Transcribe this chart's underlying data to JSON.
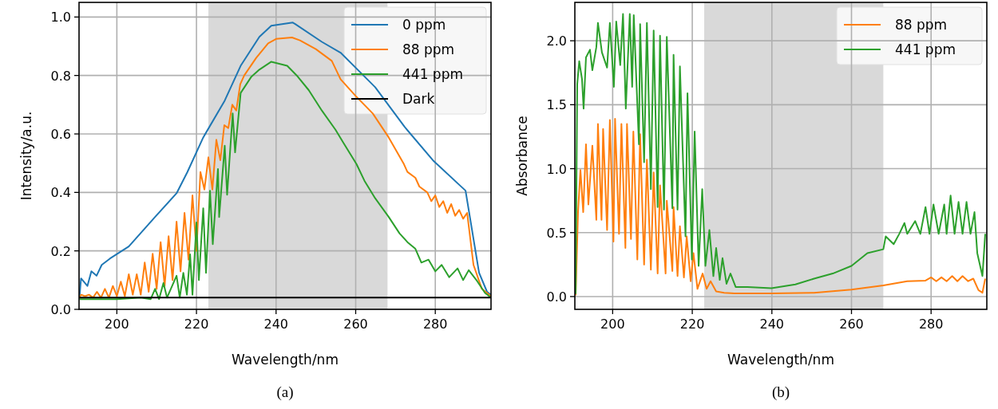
{
  "chart_data": [
    {
      "type": "line",
      "xlabel": "Wavelength/nm",
      "ylabel": "Intensity/a.u.",
      "annotations": [
        "(a)"
      ],
      "xlim": [
        190.5,
        294
      ],
      "ylim": [
        0,
        1.05
      ],
      "xticks": [
        200,
        220,
        240,
        260,
        280
      ],
      "yticks": [
        {
          "value": 0,
          "label": "0.0"
        },
        {
          "value": 0.2,
          "label": "0.2"
        },
        {
          "value": 0.4,
          "label": "0.4"
        },
        {
          "value": 0.6,
          "label": "0.6"
        },
        {
          "value": 0.8,
          "label": "0.8"
        },
        {
          "value": 1,
          "label": "1.0"
        }
      ],
      "grid": true,
      "legend": "top right",
      "bands": [
        {
          "axis": "x",
          "from": 223,
          "to": 268,
          "color": "#d9d9d9"
        }
      ],
      "series": [
        {
          "name": "0 ppm",
          "color": "#1f77b4",
          "x": [
            190.6,
            191.0,
            192.6,
            193.6,
            194.9,
            196.2,
            198.3,
            203.0,
            209.6,
            215.0,
            217.7,
            221.7,
            227.1,
            231.1,
            235.8,
            238.8,
            244.2,
            244.8,
            251.5,
            256.2,
            264.9,
            272.3,
            279.6,
            287.6,
            291.0,
            293.0,
            294.0
          ],
          "values": [
            0.04,
            0.106,
            0.08,
            0.13,
            0.115,
            0.152,
            0.174,
            0.215,
            0.316,
            0.397,
            0.469,
            0.588,
            0.714,
            0.833,
            0.932,
            0.97,
            0.981,
            0.976,
            0.915,
            0.878,
            0.76,
            0.624,
            0.507,
            0.406,
            0.125,
            0.06,
            0.05
          ]
        },
        {
          "name": "88 ppm",
          "color": "#ff7f0e",
          "x": [
            190.6,
            191,
            192,
            193,
            194,
            195,
            196,
            197,
            198,
            199,
            200,
            201,
            202,
            203,
            204,
            205,
            206,
            207,
            208,
            209,
            210,
            211,
            212,
            213,
            214,
            215,
            216,
            217,
            218,
            219,
            220,
            221,
            222,
            223,
            224,
            225,
            226,
            227,
            228,
            229,
            230,
            231,
            232,
            235,
            238,
            240,
            244,
            246,
            250,
            254,
            256.2,
            260,
            264.3,
            268.3,
            272,
            273,
            275,
            276,
            278,
            279,
            280,
            281,
            282,
            283,
            284,
            285,
            286,
            287,
            288,
            289.6,
            291.7,
            294
          ],
          "values": [
            0.04,
            0.05,
            0.045,
            0.05,
            0.04,
            0.06,
            0.04,
            0.07,
            0.04,
            0.08,
            0.045,
            0.095,
            0.045,
            0.12,
            0.05,
            0.12,
            0.05,
            0.16,
            0.06,
            0.19,
            0.07,
            0.23,
            0.08,
            0.25,
            0.1,
            0.3,
            0.13,
            0.33,
            0.17,
            0.39,
            0.2,
            0.47,
            0.41,
            0.52,
            0.41,
            0.58,
            0.51,
            0.63,
            0.62,
            0.7,
            0.68,
            0.77,
            0.8,
            0.86,
            0.91,
            0.925,
            0.93,
            0.92,
            0.89,
            0.85,
            0.787,
            0.73,
            0.67,
            0.588,
            0.5,
            0.47,
            0.45,
            0.42,
            0.4,
            0.37,
            0.39,
            0.35,
            0.37,
            0.33,
            0.36,
            0.32,
            0.34,
            0.31,
            0.33,
            0.152,
            0.07,
            0.045
          ]
        },
        {
          "name": "441 ppm",
          "color": "#2ca02c",
          "x": [
            190.6,
            200,
            206,
            208.5,
            209.6,
            210.6,
            211.7,
            212.6,
            215,
            215.8,
            216.7,
            217.6,
            218.4,
            219,
            220,
            220.6,
            221.7,
            222.4,
            223.4,
            224.1,
            225.4,
            225.7,
            227.1,
            227.7,
            229.1,
            229.7,
            231.1,
            233.8,
            235.8,
            238.8,
            242.8,
            245.4,
            248.2,
            251.5,
            254.9,
            256.9,
            260.2,
            262.2,
            264.9,
            268.3,
            271,
            273,
            275,
            276.5,
            278.3,
            280,
            281.6,
            283.5,
            285.6,
            287,
            288.4,
            290.5,
            292.5,
            294
          ],
          "values": [
            0.035,
            0.035,
            0.04,
            0.035,
            0.07,
            0.035,
            0.09,
            0.04,
            0.115,
            0.04,
            0.125,
            0.05,
            0.188,
            0.05,
            0.297,
            0.1,
            0.346,
            0.125,
            0.406,
            0.223,
            0.48,
            0.316,
            0.56,
            0.392,
            0.67,
            0.537,
            0.74,
            0.796,
            0.82,
            0.847,
            0.833,
            0.797,
            0.75,
            0.68,
            0.615,
            0.57,
            0.497,
            0.44,
            0.38,
            0.316,
            0.26,
            0.23,
            0.207,
            0.16,
            0.17,
            0.13,
            0.152,
            0.11,
            0.14,
            0.1,
            0.134,
            0.097,
            0.056,
            0.04
          ]
        },
        {
          "name": "Dark",
          "color": "#000000",
          "x": [
            190.5,
            294
          ],
          "values": [
            0.04,
            0.04
          ]
        }
      ]
    },
    {
      "type": "line",
      "xlabel": "Wavelength/nm",
      "ylabel": "Absorbance",
      "annotations": [
        "(b)"
      ],
      "xlim": [
        190.5,
        294
      ],
      "ylim": [
        -0.1,
        2.3
      ],
      "xticks": [
        200,
        220,
        240,
        260,
        280
      ],
      "yticks": [
        {
          "value": 0,
          "label": "0.0"
        },
        {
          "value": 0.5,
          "label": "0.5"
        },
        {
          "value": 1,
          "label": "1.0"
        },
        {
          "value": 1.5,
          "label": "1.5"
        },
        {
          "value": 2,
          "label": "2.0"
        }
      ],
      "grid": true,
      "legend": "top right",
      "bands": [
        {
          "axis": "x",
          "from": 223,
          "to": 268,
          "color": "#d9d9d9"
        }
      ],
      "series": [
        {
          "name": "88 ppm",
          "color": "#ff7f0e",
          "x": [
            190.7,
            191.3,
            191.9,
            192.6,
            193.3,
            193.9,
            194.9,
            195.9,
            196.3,
            197.2,
            197.6,
            198.6,
            199.3,
            200.2,
            200.6,
            201.6,
            202.2,
            203.2,
            203.6,
            204.6,
            205.2,
            206.2,
            206.9,
            207.9,
            208.6,
            209.6,
            210.3,
            211.3,
            211.9,
            213.3,
            213.6,
            215,
            215.3,
            216.3,
            216.9,
            217.9,
            218.6,
            219.6,
            220.3,
            221.3,
            222.6,
            223.6,
            224.6,
            226,
            228,
            230.6,
            239.9,
            250.6,
            260,
            268,
            274,
            278.6,
            280,
            281.3,
            282.6,
            283.9,
            285.3,
            286.6,
            287.9,
            289.3,
            290.6,
            291.9,
            292.9,
            293.6
          ],
          "values": [
            0.01,
            0.66,
            0.99,
            0.66,
            1.19,
            0.72,
            1.18,
            0.6,
            1.35,
            0.6,
            1.31,
            0.52,
            1.38,
            0.43,
            1.39,
            0.49,
            1.35,
            0.38,
            1.35,
            0.45,
            1.29,
            0.29,
            1.27,
            0.25,
            1.07,
            0.21,
            0.97,
            0.18,
            0.87,
            0.18,
            0.75,
            0.2,
            0.7,
            0.16,
            0.55,
            0.15,
            0.47,
            0.12,
            0.34,
            0.06,
            0.18,
            0.06,
            0.12,
            0.04,
            0.03,
            0.025,
            0.025,
            0.03,
            0.055,
            0.087,
            0.12,
            0.125,
            0.15,
            0.12,
            0.15,
            0.12,
            0.16,
            0.12,
            0.16,
            0.12,
            0.14,
            0.05,
            0.03,
            0.14
          ]
        },
        {
          "name": "441 ppm",
          "color": "#2ca02c",
          "x": [
            190.7,
            191.1,
            191.6,
            192.3,
            192.7,
            193.3,
            194.3,
            194.9,
            195.9,
            196.3,
            197.3,
            198.6,
            199.3,
            200.3,
            200.9,
            201.9,
            202.6,
            203.3,
            204.3,
            204.9,
            205.3,
            206.6,
            206.9,
            207.9,
            208.6,
            209.6,
            210.3,
            211.3,
            211.9,
            212.9,
            213.6,
            215,
            215.3,
            216.3,
            216.9,
            218.3,
            218.8,
            219.9,
            220.6,
            221.6,
            222.5,
            223.3,
            224.3,
            225.3,
            226,
            226.9,
            227.6,
            228.6,
            229.6,
            230.9,
            233.9,
            239.9,
            245.9,
            250.6,
            255.3,
            260,
            264,
            268,
            268.6,
            270.6,
            272,
            273.3,
            274,
            276,
            277.3,
            278.6,
            279.6,
            280.6,
            281.9,
            283.3,
            283.9,
            284.9,
            285.9,
            286.9,
            287.9,
            288.9,
            289.9,
            290.9,
            291.6,
            292.9,
            293.6
          ],
          "values": [
            0.02,
            1.66,
            1.84,
            1.7,
            1.47,
            1.87,
            1.93,
            1.77,
            1.95,
            2.14,
            1.91,
            1.79,
            2.14,
            1.64,
            2.15,
            1.81,
            2.21,
            1.47,
            2.21,
            1.64,
            2.2,
            1.19,
            2.13,
            1.05,
            2.14,
            0.84,
            2.08,
            0.7,
            2.04,
            0.68,
            2.03,
            0.69,
            1.89,
            0.68,
            1.8,
            0.47,
            1.59,
            0.29,
            1.29,
            0.24,
            0.84,
            0.24,
            0.52,
            0.16,
            0.38,
            0.13,
            0.3,
            0.1,
            0.18,
            0.075,
            0.075,
            0.065,
            0.095,
            0.14,
            0.18,
            0.24,
            0.34,
            0.37,
            0.47,
            0.41,
            0.49,
            0.575,
            0.49,
            0.59,
            0.49,
            0.7,
            0.49,
            0.72,
            0.49,
            0.72,
            0.49,
            0.79,
            0.49,
            0.74,
            0.49,
            0.74,
            0.49,
            0.66,
            0.34,
            0.16,
            0.49
          ]
        }
      ]
    }
  ]
}
